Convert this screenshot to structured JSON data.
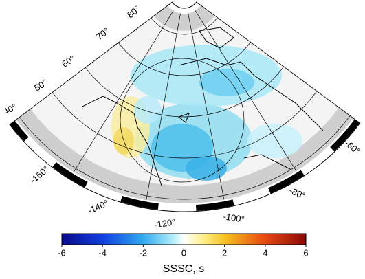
{
  "map": {
    "lat_labels": [
      "80°",
      "70°",
      "60°",
      "50°",
      "40°"
    ],
    "lon_labels": [
      "-160°",
      "-140°",
      "-120°",
      "-100°",
      "-80°",
      "-60°"
    ],
    "colorbar": {
      "range": [
        -6,
        6
      ],
      "ticks": [
        -6,
        -4,
        -2,
        0,
        2,
        4,
        6
      ],
      "label": "SSSC, s"
    }
  }
}
